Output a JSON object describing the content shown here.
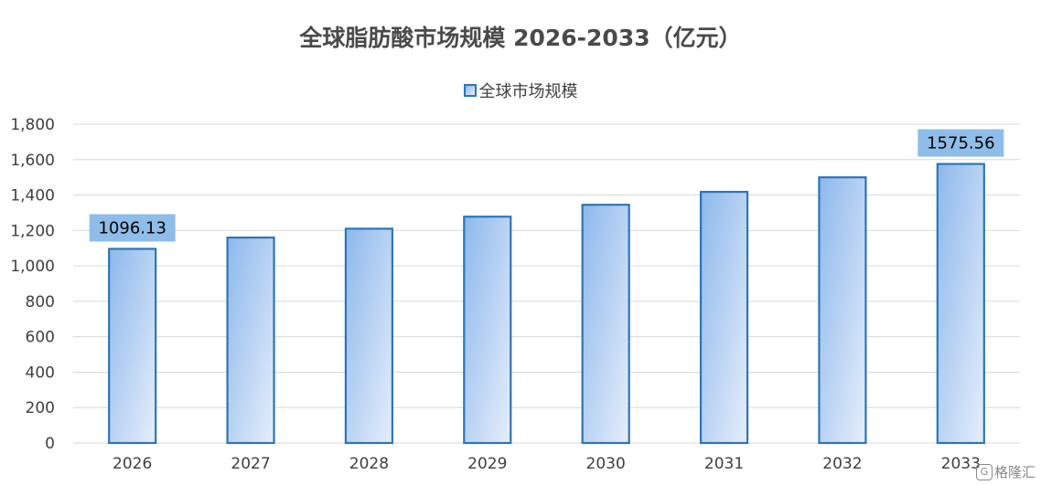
{
  "chart_data": {
    "type": "bar",
    "title": "全球脂肪酸市场规模 2026-2033（亿元）",
    "categories": [
      "2026",
      "2027",
      "2028",
      "2029",
      "2030",
      "2031",
      "2032",
      "2033"
    ],
    "series": [
      {
        "name": "全球市场规模",
        "values": [
          1096.13,
          1160,
          1210,
          1278,
          1345,
          1418,
          1500,
          1575.56
        ]
      }
    ],
    "data_labels": {
      "2026": "1096.13",
      "2033": "1575.56"
    },
    "ylim": [
      0,
      1800
    ],
    "yticks": [
      "0",
      "200",
      "400",
      "600",
      "800",
      "1,000",
      "1,200",
      "1,400",
      "1,600",
      "1,800"
    ],
    "xlabel": "",
    "ylabel": "",
    "grid": true,
    "legend": "top",
    "colors": {
      "bar_border": "#2e75b6",
      "bar_fill_top": "#8db8ec",
      "bar_fill_bottom": "#e6eefb",
      "label_bg": "#8fbde9",
      "grid": "#d9d9d9"
    }
  },
  "watermark": {
    "logo_char": "G",
    "text": "格隆汇"
  }
}
